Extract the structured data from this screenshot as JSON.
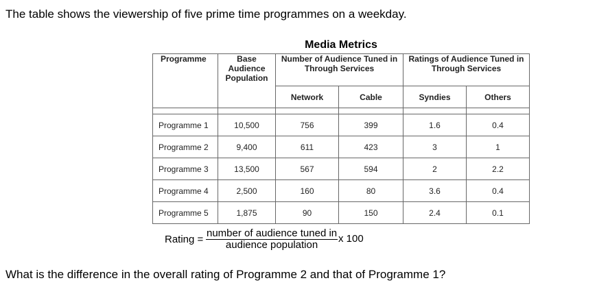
{
  "intro": "The table shows the viewership of five prime time programmes on a weekday.",
  "table": {
    "title": "Media Metrics",
    "headers": {
      "programme": "Programme",
      "base": "Base Audience Population",
      "tuned_group": "Number of Audience Tuned in Through Services",
      "ratings_group": "Ratings of Audience Tuned in Through Services",
      "network": "Network",
      "cable": "Cable",
      "syndies": "Syndies",
      "others": "Others"
    },
    "rows": [
      {
        "programme": "Programme 1",
        "base": "10,500",
        "network": "756",
        "cable": "399",
        "syndies": "1.6",
        "others": "0.4"
      },
      {
        "programme": "Programme 2",
        "base": "9,400",
        "network": "611",
        "cable": "423",
        "syndies": "3",
        "others": "1"
      },
      {
        "programme": "Programme 3",
        "base": "13,500",
        "network": "567",
        "cable": "594",
        "syndies": "2",
        "others": "2.2"
      },
      {
        "programme": "Programme 4",
        "base": "2,500",
        "network": "160",
        "cable": "80",
        "syndies": "3.6",
        "others": "0.4"
      },
      {
        "programme": "Programme 5",
        "base": "1,875",
        "network": "90",
        "cable": "150",
        "syndies": "2.4",
        "others": "0.1"
      }
    ]
  },
  "formula": {
    "label": "Rating =",
    "numerator": "number of audience tuned in",
    "denominator": "audience population",
    "multiplier": "x 100"
  },
  "question": "What is the difference in the overall rating of Programme 2 and that of Programme 1?"
}
